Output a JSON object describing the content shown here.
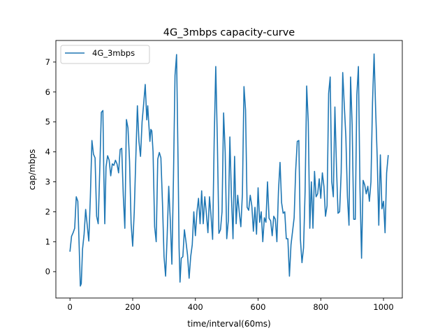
{
  "chart_data": {
    "type": "line",
    "title": "4G_3mbps  capacity-curve",
    "xlabel": "time/interval(60ms)",
    "ylabel": "cap/mbps",
    "xlim": [
      -45,
      1060
    ],
    "ylim": [
      -0.88,
      7.72
    ],
    "xticks": [
      0,
      200,
      400,
      600,
      800,
      1000
    ],
    "yticks": [
      0,
      1,
      2,
      3,
      4,
      5,
      6,
      7
    ],
    "grid": false,
    "legend_position": "top-left",
    "series": [
      {
        "name": "4G_3mbps",
        "color": "#1f77b4",
        "x": [
          0,
          5,
          10,
          15,
          20,
          25,
          30,
          33,
          36,
          40,
          45,
          50,
          55,
          60,
          65,
          70,
          75,
          80,
          85,
          90,
          95,
          100,
          105,
          108,
          111,
          115,
          120,
          125,
          130,
          135,
          140,
          145,
          150,
          155,
          160,
          165,
          170,
          175,
          180,
          185,
          190,
          195,
          200,
          205,
          210,
          215,
          220,
          225,
          230,
          235,
          240,
          245,
          248,
          251,
          255,
          258,
          261,
          265,
          270,
          275,
          280,
          285,
          290,
          295,
          300,
          305,
          310,
          315,
          320,
          325,
          330,
          335,
          340,
          345,
          348,
          351,
          355,
          360,
          365,
          370,
          375,
          380,
          385,
          390,
          395,
          400,
          405,
          410,
          415,
          420,
          425,
          430,
          435,
          440,
          445,
          450,
          455,
          460,
          465,
          470,
          475,
          480,
          485,
          490,
          495,
          500,
          505,
          510,
          515,
          520,
          525,
          530,
          535,
          540,
          545,
          550,
          555,
          560,
          565,
          570,
          575,
          580,
          585,
          590,
          595,
          600,
          605,
          610,
          615,
          620,
          625,
          630,
          635,
          640,
          645,
          650,
          655,
          660,
          665,
          670,
          675,
          680,
          685,
          690,
          695,
          700,
          705,
          710,
          715,
          720,
          725,
          730,
          735,
          740,
          745,
          750,
          755,
          760,
          765,
          770,
          775,
          780,
          785,
          790,
          795,
          800,
          805,
          810,
          815,
          820,
          825,
          830,
          835,
          840,
          845,
          850,
          855,
          860,
          865,
          870,
          875,
          880,
          885,
          890,
          895,
          900,
          905,
          910,
          915,
          920,
          925,
          930,
          935,
          940,
          945,
          950,
          955,
          960,
          965,
          970,
          975,
          980,
          985,
          990,
          995,
          1000,
          1005,
          1010,
          1015
        ],
        "values": [
          0.68,
          1.18,
          1.3,
          1.45,
          2.5,
          2.35,
          0.6,
          -0.48,
          -0.4,
          0.75,
          1.25,
          2.08,
          1.55,
          1.02,
          2.5,
          4.38,
          3.92,
          3.8,
          1.85,
          1.6,
          3.4,
          5.32,
          5.38,
          3.2,
          1.6,
          3.5,
          3.87,
          3.72,
          3.2,
          3.6,
          3.55,
          3.72,
          3.6,
          3.3,
          4.08,
          4.12,
          2.55,
          1.45,
          5.08,
          4.8,
          3.7,
          1.6,
          0.85,
          2.0,
          3.8,
          5.54,
          4.35,
          3.85,
          5.0,
          5.6,
          6.25,
          5.07,
          5.54,
          5.0,
          4.35,
          4.75,
          4.7,
          4.0,
          1.5,
          1.0,
          3.76,
          3.98,
          3.8,
          2.3,
          0.5,
          -0.15,
          1.2,
          2.85,
          1.7,
          0.25,
          3.1,
          6.55,
          7.25,
          3.5,
          0.8,
          -0.35,
          0.45,
          0.5,
          1.4,
          1.0,
          0.55,
          -0.22,
          0.5,
          0.9,
          2.0,
          1.2,
          2.0,
          2.45,
          1.6,
          2.7,
          1.6,
          2.5,
          1.95,
          1.3,
          2.5,
          1.85,
          1.08,
          4.4,
          6.85,
          4.4,
          1.28,
          1.4,
          2.0,
          5.3,
          4.0,
          1.1,
          1.7,
          4.5,
          2.5,
          1.1,
          3.85,
          1.6,
          2.55,
          1.98,
          1.5,
          2.6,
          6.18,
          5.4,
          2.15,
          2.05,
          2.55,
          2.2,
          1.35,
          2.15,
          1.25,
          2.8,
          1.65,
          2.0,
          1.0,
          1.8,
          1.65,
          3.0,
          1.78,
          1.7,
          1.2,
          1.85,
          1.75,
          1.0,
          2.7,
          3.65,
          2.3,
          1.95,
          2.0,
          1.1,
          1.1,
          -0.15,
          0.9,
          1.35,
          1.8,
          3.4,
          4.35,
          4.38,
          1.08,
          0.3,
          0.8,
          2.7,
          6.2,
          5.0,
          1.45,
          3.0,
          1.45,
          3.35,
          2.5,
          2.6,
          3.1,
          2.45,
          3.3,
          2.85,
          1.85,
          2.2,
          5.95,
          6.5,
          3.0,
          2.5,
          5.5,
          3.5,
          1.95,
          2.0,
          3.3,
          6.65,
          5.55,
          4.5,
          2.5,
          1.55,
          6.5,
          4.9,
          1.75,
          1.75,
          5.9,
          6.85,
          2.8,
          0.45,
          3.05,
          2.9,
          2.6,
          2.85,
          2.35,
          3.0,
          5.65,
          7.27,
          5.4,
          3.8,
          1.55,
          3.9,
          2.1,
          2.35,
          1.3,
          3.3,
          3.88
        ]
      }
    ]
  }
}
